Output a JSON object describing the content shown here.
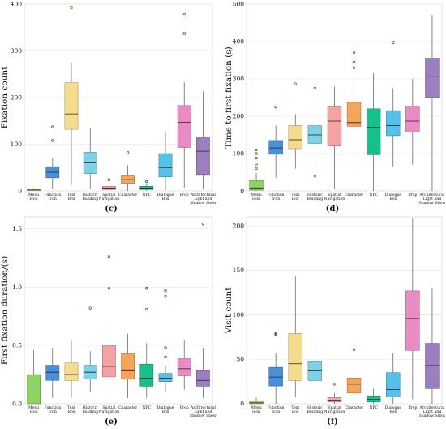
{
  "categories": [
    [
      "Menu",
      "Icon"
    ],
    [
      "Function",
      "Icon"
    ],
    [
      "Text",
      "Box"
    ],
    [
      "Historic",
      "Building"
    ],
    [
      "Spatial",
      "Navigation"
    ],
    [
      "Character"
    ],
    [
      "NPC"
    ],
    [
      "Dialogue",
      "Box"
    ],
    [
      "Prop"
    ],
    [
      "Architectural",
      "Light and",
      "Shadow Show"
    ]
  ],
  "colors": [
    "#8dd35f",
    "#4a90d9",
    "#f5dc8c",
    "#7fd1e6",
    "#f4a3a3",
    "#f5a55b",
    "#17bf8c",
    "#56c1e8",
    "#e98cc4",
    "#9b7fc0"
  ],
  "chart_data": [
    {
      "type": "box",
      "panel_label": "(c)",
      "ylabel": "Fixation count",
      "ylim": [
        0,
        400
      ],
      "yticks": [
        0,
        100,
        200,
        300,
        400
      ],
      "boxes": [
        {
          "min": 0,
          "q1": 1,
          "median": 2,
          "q3": 4,
          "max": 6,
          "outliers": []
        },
        {
          "min": 5,
          "q1": 28,
          "median": 40,
          "q3": 52,
          "max": 70,
          "outliers": [
            108,
            137
          ]
        },
        {
          "min": 12,
          "q1": 132,
          "median": 165,
          "q3": 232,
          "max": 275,
          "outliers": [
            392
          ]
        },
        {
          "min": 5,
          "q1": 37,
          "median": 62,
          "q3": 83,
          "max": 135,
          "outliers": []
        },
        {
          "min": 0,
          "q1": 3,
          "median": 6,
          "q3": 10,
          "max": 15,
          "outliers": [
            24
          ]
        },
        {
          "min": 0,
          "q1": 16,
          "median": 24,
          "q3": 34,
          "max": 55,
          "outliers": [
            82
          ]
        },
        {
          "min": 0,
          "q1": 3,
          "median": 6,
          "q3": 10,
          "max": 15,
          "outliers": [
            20
          ]
        },
        {
          "min": 2,
          "q1": 30,
          "median": 50,
          "q3": 80,
          "max": 128,
          "outliers": []
        },
        {
          "min": 7,
          "q1": 93,
          "median": 147,
          "q3": 183,
          "max": 233,
          "outliers": [
            337,
            378
          ]
        },
        {
          "min": 5,
          "q1": 35,
          "median": 85,
          "q3": 115,
          "max": 213,
          "outliers": []
        }
      ]
    },
    {
      "type": "box",
      "panel_label": "(d)",
      "ylabel": "Time to first fixation (s)",
      "ylim": [
        0,
        500
      ],
      "yticks": [
        0,
        100,
        200,
        300,
        400,
        500
      ],
      "boxes": [
        {
          "min": 0,
          "q1": 2,
          "median": 8,
          "q3": 28,
          "max": 48,
          "outliers": [
            60,
            72,
            88,
            100,
            110
          ]
        },
        {
          "min": 35,
          "q1": 98,
          "median": 115,
          "q3": 135,
          "max": 175,
          "outliers": [
            225
          ]
        },
        {
          "min": 60,
          "q1": 113,
          "median": 137,
          "q3": 175,
          "max": 205,
          "outliers": [
            287
          ]
        },
        {
          "min": 75,
          "q1": 127,
          "median": 150,
          "q3": 175,
          "max": 210,
          "outliers": [
            40,
            275
          ]
        },
        {
          "min": 5,
          "q1": 120,
          "median": 187,
          "q3": 225,
          "max": 280,
          "outliers": []
        },
        {
          "min": 75,
          "q1": 173,
          "median": 183,
          "q3": 237,
          "max": 283,
          "outliers": [
            330,
            345,
            370
          ]
        },
        {
          "min": 0,
          "q1": 97,
          "median": 170,
          "q3": 220,
          "max": 315,
          "outliers": []
        },
        {
          "min": 65,
          "q1": 148,
          "median": 175,
          "q3": 215,
          "max": 275,
          "outliers": [
            397
          ]
        },
        {
          "min": 70,
          "q1": 158,
          "median": 187,
          "q3": 227,
          "max": 300,
          "outliers": []
        },
        {
          "min": 0,
          "q1": 250,
          "median": 307,
          "q3": 355,
          "max": 470,
          "outliers": []
        }
      ]
    },
    {
      "type": "box",
      "panel_label": "(e)",
      "ylabel": "First fixation duration/(s)",
      "ylim": [
        0,
        1.6
      ],
      "yticks": [
        0,
        0.5,
        1,
        1.5
      ],
      "ytick_labels": [
        "0.0",
        "0.5",
        "1.0",
        "1.5"
      ],
      "boxes": [
        {
          "min": 0,
          "q1": 0,
          "median": 0.17,
          "q3": 0.25,
          "max": 0.46,
          "outliers": []
        },
        {
          "min": 0.05,
          "q1": 0.2,
          "median": 0.27,
          "q3": 0.33,
          "max": 0.48,
          "outliers": []
        },
        {
          "min": 0.05,
          "q1": 0.2,
          "median": 0.25,
          "q3": 0.35,
          "max": 0.54,
          "outliers": []
        },
        {
          "min": 0.1,
          "q1": 0.21,
          "median": 0.27,
          "q3": 0.33,
          "max": 0.45,
          "outliers": [
            0.82
          ]
        },
        {
          "min": 0.05,
          "q1": 0.23,
          "median": 0.32,
          "q3": 0.5,
          "max": 0.69,
          "outliers": [
            0.99,
            1.26
          ]
        },
        {
          "min": 0.05,
          "q1": 0.21,
          "median": 0.29,
          "q3": 0.43,
          "max": 0.6,
          "outliers": []
        },
        {
          "min": 0.05,
          "q1": 0.15,
          "median": 0.22,
          "q3": 0.34,
          "max": 0.52,
          "outliers": [
            0.81,
            0.99
          ]
        },
        {
          "min": 0.1,
          "q1": 0.19,
          "median": 0.22,
          "q3": 0.26,
          "max": 0.33,
          "outliers": [
            0.4,
            0.48,
            0.92,
            0.97
          ]
        },
        {
          "min": 0.12,
          "q1": 0.24,
          "median": 0.3,
          "q3": 0.39,
          "max": 0.55,
          "outliers": []
        },
        {
          "min": 0.05,
          "q1": 0.15,
          "median": 0.2,
          "q3": 0.29,
          "max": 0.48,
          "outliers": [
            1.54
          ]
        }
      ]
    },
    {
      "type": "box",
      "panel_label": "(f)",
      "ylabel": "Visit count",
      "ylim": [
        0,
        210
      ],
      "yticks": [
        0,
        50,
        100,
        150,
        200
      ],
      "boxes": [
        {
          "min": 0,
          "q1": 0,
          "median": 1,
          "q3": 3,
          "max": 7,
          "outliers": []
        },
        {
          "min": 0,
          "q1": 20,
          "median": 30,
          "q3": 41,
          "max": 57,
          "outliers": [
            78,
            79
          ]
        },
        {
          "min": 8,
          "q1": 26,
          "median": 45,
          "q3": 79,
          "max": 143,
          "outliers": []
        },
        {
          "min": 5,
          "q1": 26,
          "median": 38,
          "q3": 48,
          "max": 67,
          "outliers": []
        },
        {
          "min": 0,
          "q1": 2,
          "median": 4,
          "q3": 7,
          "max": 12,
          "outliers": [
            22
          ]
        },
        {
          "min": 0,
          "q1": 12,
          "median": 22,
          "q3": 29,
          "max": 44,
          "outliers": [
            61
          ]
        },
        {
          "min": 0,
          "q1": 2,
          "median": 5,
          "q3": 9,
          "max": 17,
          "outliers": []
        },
        {
          "min": 0,
          "q1": 8,
          "median": 16,
          "q3": 35,
          "max": 57,
          "outliers": []
        },
        {
          "min": 5,
          "q1": 60,
          "median": 96,
          "q3": 127,
          "max": 209,
          "outliers": []
        },
        {
          "min": 0,
          "q1": 17,
          "median": 43,
          "q3": 68,
          "max": 130,
          "outliers": []
        }
      ]
    }
  ]
}
